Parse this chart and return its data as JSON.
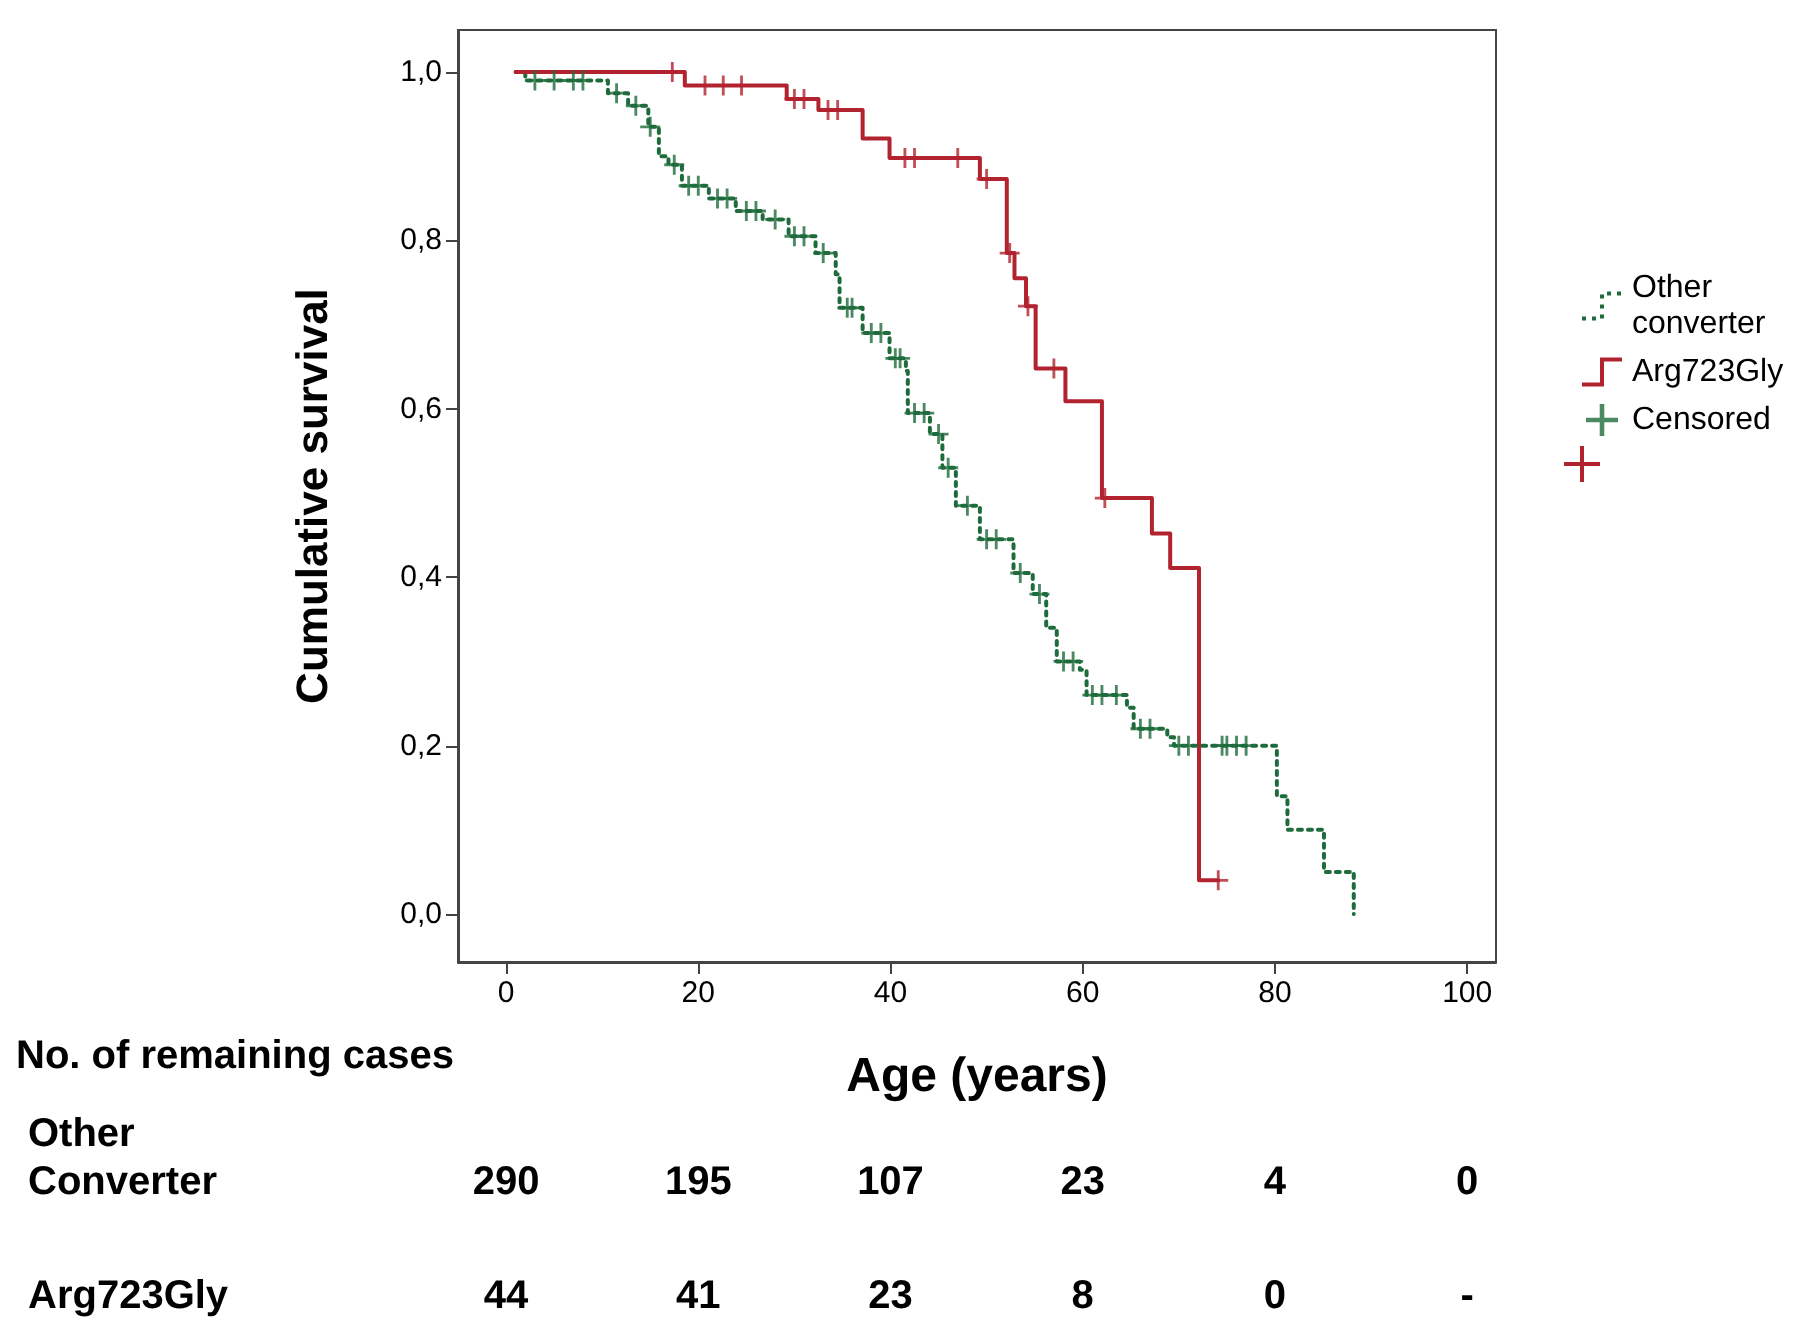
{
  "chart_data": {
    "type": "step",
    "xlabel": "Age (years)",
    "ylabel": "Cumulative survival",
    "xlim": [
      -5,
      103
    ],
    "xticks": [
      0,
      20,
      40,
      60,
      80,
      100
    ],
    "ylim": [
      -0.057,
      1.05
    ],
    "yticks": [
      {
        "value": 0,
        "label": "0,0"
      },
      {
        "value": 0.2,
        "label": "0,2"
      },
      {
        "value": 0.4,
        "label": "0,4"
      },
      {
        "value": 0.6,
        "label": "0,6"
      },
      {
        "value": 0.8,
        "label": "0,8"
      },
      {
        "value": 1,
        "label": "1,0"
      }
    ],
    "grid": false,
    "legend": "right",
    "series": [
      {
        "name": "Other converter",
        "color": "#1e6b3c",
        "line_style": "dotted",
        "marker": "none",
        "x": [
          1,
          2,
          10.6,
          12.7,
          14.8,
          15.9,
          16.9,
          18.3,
          21.1,
          23.9,
          26.7,
          29.4,
          32.2,
          34.3,
          34.7,
          37.1,
          39.9,
          41.6,
          41.8,
          44.1,
          45.4,
          46.8,
          49.3,
          52.8,
          54.8,
          56.2,
          57.3,
          59.7,
          60.4,
          64.6,
          65.3,
          68.8,
          69.5,
          80.2,
          81.3,
          85.1,
          88.2
        ],
        "values": [
          1,
          0.99,
          0.975,
          0.96,
          0.935,
          0.9,
          0.89,
          0.865,
          0.85,
          0.835,
          0.825,
          0.805,
          0.785,
          0.76,
          0.72,
          0.69,
          0.66,
          0.645,
          0.595,
          0.57,
          0.53,
          0.485,
          0.445,
          0.405,
          0.38,
          0.34,
          0.3,
          0.29,
          0.26,
          0.245,
          0.22,
          0.21,
          0.2,
          0.14,
          0.1,
          0.05,
          0
        ]
      },
      {
        "name": "Arg723Gly",
        "color": "#b22330",
        "line_style": "solid",
        "marker": "none",
        "x": [
          1,
          18.6,
          29.2,
          32.5,
          37.1,
          39.9,
          49.3,
          52.1,
          52.9,
          54.1,
          55.1,
          58.2,
          62.0,
          67.2,
          69.1,
          72.1,
          74.1
        ],
        "values": [
          1,
          0.984,
          0.968,
          0.955,
          0.921,
          0.898,
          0.873,
          0.785,
          0.755,
          0.722,
          0.648,
          0.609,
          0.494,
          0.452,
          0.411,
          0.04,
          0.04
        ]
      },
      {
        "name": "Censored",
        "type": "scatter",
        "color": "#1e6b3c",
        "marker": "cross",
        "x": [
          3,
          5,
          7,
          8,
          11.5,
          13.5,
          15,
          17.5,
          19,
          20,
          22,
          23,
          25,
          26,
          28,
          30,
          31,
          33,
          35.5,
          36,
          38,
          39,
          40.5,
          41,
          42.5,
          43.5,
          45,
          46,
          48,
          50,
          51,
          53.5,
          55.5,
          58,
          59,
          61,
          62,
          63.5,
          66,
          67,
          70,
          71,
          74.5,
          75,
          76,
          77
        ],
        "values": [
          0.99,
          0.99,
          0.99,
          0.99,
          0.975,
          0.96,
          0.935,
          0.89,
          0.865,
          0.865,
          0.85,
          0.85,
          0.835,
          0.835,
          0.825,
          0.805,
          0.805,
          0.785,
          0.72,
          0.72,
          0.69,
          0.69,
          0.66,
          0.66,
          0.595,
          0.595,
          0.57,
          0.53,
          0.485,
          0.445,
          0.445,
          0.405,
          0.38,
          0.3,
          0.3,
          0.26,
          0.26,
          0.26,
          0.22,
          0.22,
          0.2,
          0.2,
          0.2,
          0.2,
          0.2,
          0.2
        ]
      },
      {
        "type": "scatter",
        "color": "#b22330",
        "marker": "cross",
        "x": [
          17.3,
          20.7,
          22.6,
          24.5,
          30,
          31,
          33.5,
          34.5,
          41.5,
          42.5,
          47,
          50,
          52.4,
          54.3,
          57,
          62.3,
          74.1
        ],
        "values": [
          1,
          0.984,
          0.984,
          0.984,
          0.968,
          0.968,
          0.955,
          0.955,
          0.898,
          0.898,
          0.898,
          0.873,
          0.785,
          0.722,
          0.648,
          0.494,
          0.04
        ]
      }
    ],
    "annotations": [
      "No. of remaining cases",
      "Other Converter",
      "290",
      "195",
      "107",
      "23",
      "4",
      "0",
      "Arg723Gly",
      "44",
      "41",
      "23",
      "8",
      "0",
      "-"
    ]
  }
}
